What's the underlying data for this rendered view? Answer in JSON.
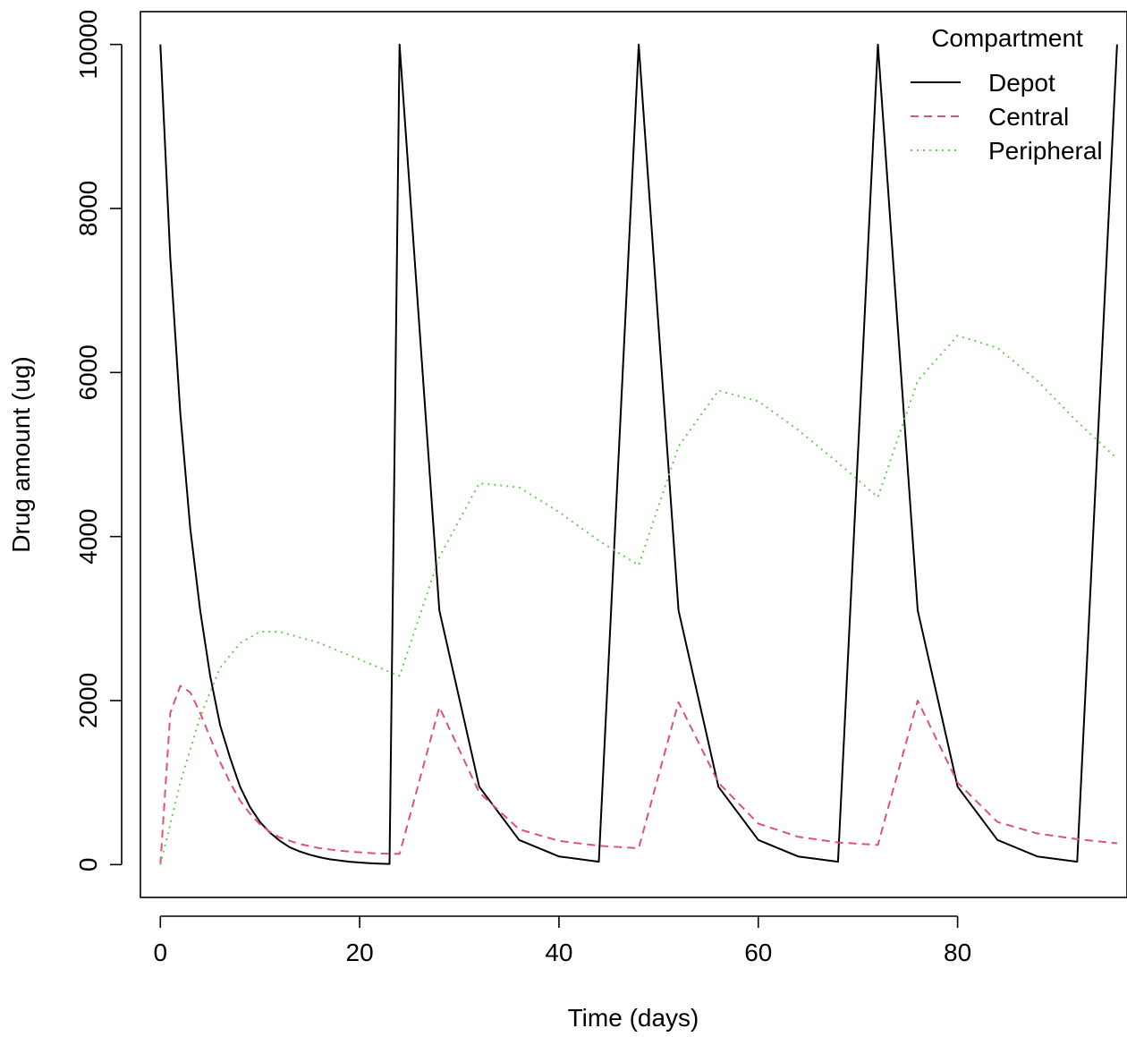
{
  "chart_data": {
    "type": "line",
    "title": "",
    "xlabel": "Time (days)",
    "ylabel": "Drug amount (ug)",
    "xlim": [
      -2,
      97
    ],
    "ylim": [
      -400,
      10400
    ],
    "x_ticks": [
      0,
      20,
      40,
      60,
      80
    ],
    "y_ticks": [
      0,
      2000,
      4000,
      6000,
      8000,
      10000
    ],
    "grid": false,
    "legend": {
      "title": "Compartment",
      "placement": "top-right",
      "entries": [
        "Depot",
        "Central",
        "Peripheral"
      ]
    },
    "series": [
      {
        "name": "Depot",
        "color": "#000000",
        "dash": "solid",
        "points": [
          [
            0,
            10000
          ],
          [
            1,
            7400
          ],
          [
            2,
            5500
          ],
          [
            3,
            4100
          ],
          [
            4,
            3100
          ],
          [
            5,
            2300
          ],
          [
            6,
            1700
          ],
          [
            7,
            1300
          ],
          [
            8,
            950
          ],
          [
            9,
            700
          ],
          [
            10,
            520
          ],
          [
            11,
            390
          ],
          [
            12,
            290
          ],
          [
            13,
            210
          ],
          [
            14,
            160
          ],
          [
            15,
            120
          ],
          [
            16,
            90
          ],
          [
            17,
            65
          ],
          [
            18,
            50
          ],
          [
            19,
            35
          ],
          [
            20,
            25
          ],
          [
            21,
            18
          ],
          [
            22,
            12
          ],
          [
            23,
            8
          ],
          [
            24,
            10000
          ],
          [
            28,
            3100
          ],
          [
            32,
            950
          ],
          [
            36,
            300
          ],
          [
            40,
            100
          ],
          [
            44,
            35
          ],
          [
            48,
            10000
          ],
          [
            52,
            3100
          ],
          [
            56,
            950
          ],
          [
            60,
            300
          ],
          [
            64,
            100
          ],
          [
            68,
            35
          ],
          [
            72,
            10000
          ],
          [
            76,
            3100
          ],
          [
            80,
            950
          ],
          [
            84,
            300
          ],
          [
            88,
            100
          ],
          [
            92,
            35
          ],
          [
            96,
            10000
          ]
        ]
      },
      {
        "name": "Central",
        "color": "#DF536B",
        "dash": "dashed",
        "points": [
          [
            0,
            0
          ],
          [
            1,
            1850
          ],
          [
            2,
            2180
          ],
          [
            3,
            2100
          ],
          [
            4,
            1850
          ],
          [
            5,
            1550
          ],
          [
            6,
            1250
          ],
          [
            7,
            1000
          ],
          [
            8,
            780
          ],
          [
            9,
            620
          ],
          [
            10,
            490
          ],
          [
            11,
            400
          ],
          [
            12,
            330
          ],
          [
            14,
            250
          ],
          [
            16,
            200
          ],
          [
            18,
            170
          ],
          [
            20,
            150
          ],
          [
            22,
            135
          ],
          [
            24,
            130
          ],
          [
            28,
            1920
          ],
          [
            32,
            880
          ],
          [
            36,
            430
          ],
          [
            40,
            290
          ],
          [
            44,
            230
          ],
          [
            48,
            200
          ],
          [
            52,
            1980
          ],
          [
            56,
            1000
          ],
          [
            60,
            500
          ],
          [
            64,
            340
          ],
          [
            68,
            270
          ],
          [
            72,
            240
          ],
          [
            76,
            2000
          ],
          [
            80,
            1000
          ],
          [
            84,
            520
          ],
          [
            88,
            380
          ],
          [
            92,
            310
          ],
          [
            96,
            260
          ]
        ]
      },
      {
        "name": "Peripheral",
        "color": "#61D04F",
        "dash": "dotted",
        "points": [
          [
            0,
            0
          ],
          [
            2,
            1000
          ],
          [
            4,
            1800
          ],
          [
            6,
            2400
          ],
          [
            8,
            2700
          ],
          [
            10,
            2840
          ],
          [
            12,
            2840
          ],
          [
            16,
            2700
          ],
          [
            20,
            2500
          ],
          [
            24,
            2300
          ],
          [
            28,
            3750
          ],
          [
            32,
            4650
          ],
          [
            36,
            4600
          ],
          [
            40,
            4300
          ],
          [
            44,
            3950
          ],
          [
            48,
            3650
          ],
          [
            52,
            5100
          ],
          [
            56,
            5780
          ],
          [
            60,
            5650
          ],
          [
            64,
            5300
          ],
          [
            68,
            4900
          ],
          [
            72,
            4480
          ],
          [
            76,
            5900
          ],
          [
            80,
            6450
          ],
          [
            84,
            6300
          ],
          [
            88,
            5900
          ],
          [
            92,
            5400
          ],
          [
            96,
            4950
          ]
        ]
      }
    ]
  }
}
